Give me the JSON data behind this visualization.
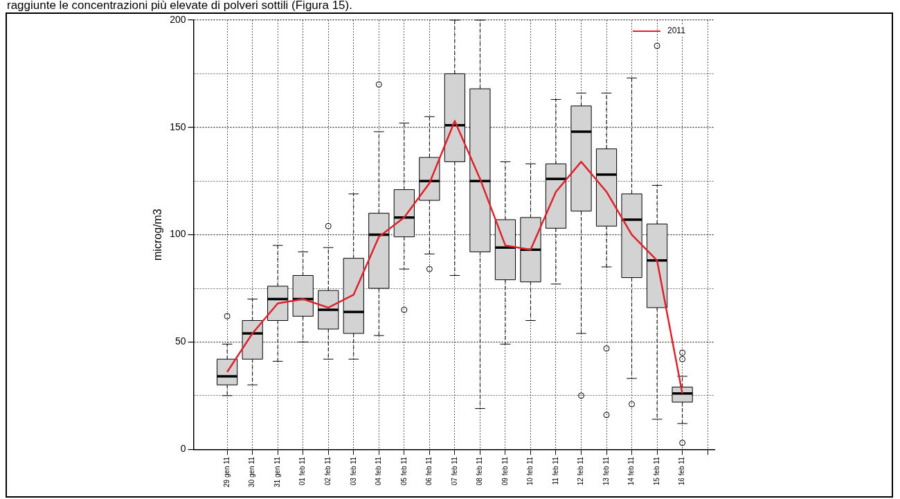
{
  "chart_data": {
    "type": "box",
    "ylabel": "microg/m3",
    "annotations": [
      "raggiunte le concentrazioni più elevate di polveri sottili (Figura 15)."
    ],
    "categories": [
      "29 gen 11",
      "30 gen 11",
      "31 gen 11",
      "01 feb 11",
      "02 feb 11",
      "03 feb 11",
      "04 feb 11",
      "05 feb 11",
      "06 feb 11",
      "07 feb 11",
      "08 feb 11",
      "09 feb 11",
      "10 feb 11",
      "11 feb 11",
      "12 feb 11",
      "13 feb 11",
      "14 feb 11",
      "15 feb 11",
      "16 feb 11",
      null
    ],
    "ylim": [
      0,
      200
    ],
    "yticks": [
      0,
      {
        "value": 25,
        "label": null
      },
      50,
      {
        "value": 75,
        "label": null
      },
      100,
      {
        "value": 125,
        "label": null
      },
      150,
      {
        "value": 175,
        "label": null
      },
      200
    ],
    "grid": true,
    "legend": "top right",
    "series": [
      {
        "type": "box",
        "color": "#d3d3d3",
        "boxes": [
          {
            "low": 25,
            "q1": 30,
            "median": 34,
            "q3": 42,
            "high": 49,
            "outliers": [
              62
            ]
          },
          {
            "low": 30,
            "q1": 42,
            "median": 54,
            "q3": 60,
            "high": 70
          },
          {
            "low": 41,
            "q1": 60,
            "median": 70,
            "q3": 76,
            "high": 95
          },
          {
            "low": 50,
            "q1": 62,
            "median": 70,
            "q3": 81,
            "high": 92
          },
          {
            "low": 42,
            "q1": 56,
            "median": 65,
            "q3": 74,
            "high": 94,
            "outliers": [
              104
            ]
          },
          {
            "low": 42,
            "q1": 54,
            "median": 64,
            "q3": 89,
            "high": 119
          },
          {
            "low": 53,
            "q1": 75,
            "median": 100,
            "q3": 110,
            "high": 148,
            "outliers": [
              170
            ]
          },
          {
            "low": 84,
            "q1": 99,
            "median": 108,
            "q3": 121,
            "high": 152,
            "outliers": [
              65
            ]
          },
          {
            "low": 91,
            "q1": 116,
            "median": 125,
            "q3": 136,
            "high": 155,
            "outliers": [
              84
            ]
          },
          {
            "low": 81,
            "q1": 134,
            "median": 151,
            "q3": 175,
            "high": 200
          },
          {
            "low": 19,
            "q1": 92,
            "median": 125,
            "q3": 168,
            "high": 200
          },
          {
            "low": 49,
            "q1": 79,
            "median": 94,
            "q3": 107,
            "high": 134
          },
          {
            "low": 60,
            "q1": 78,
            "median": 93,
            "q3": 108,
            "high": 133
          },
          {
            "low": 77,
            "q1": 103,
            "median": 126,
            "q3": 133,
            "high": 163
          },
          {
            "low": 54,
            "q1": 111,
            "median": 148,
            "q3": 160,
            "high": 166,
            "outliers": [
              25
            ]
          },
          {
            "low": 85,
            "q1": 104,
            "median": 128,
            "q3": 140,
            "high": 166,
            "outliers": [
              47,
              16
            ]
          },
          {
            "low": 33,
            "q1": 80,
            "median": 107,
            "q3": 119,
            "high": 173,
            "outliers": [
              21
            ]
          },
          {
            "low": 14,
            "q1": 66,
            "median": 88,
            "q3": 105,
            "high": 123,
            "outliers": [
              188
            ]
          },
          {
            "low": 12,
            "q1": 22,
            "median": 26,
            "q3": 29,
            "high": 34,
            "outliers": [
              45,
              42,
              3
            ]
          },
          null
        ]
      },
      {
        "type": "line",
        "name": "2011",
        "color": "#e0202a",
        "values": [
          36,
          54,
          68,
          70,
          66,
          72,
          99,
          108,
          124,
          153,
          126,
          95,
          93,
          120,
          134,
          120,
          100,
          88,
          26,
          null
        ]
      }
    ]
  }
}
